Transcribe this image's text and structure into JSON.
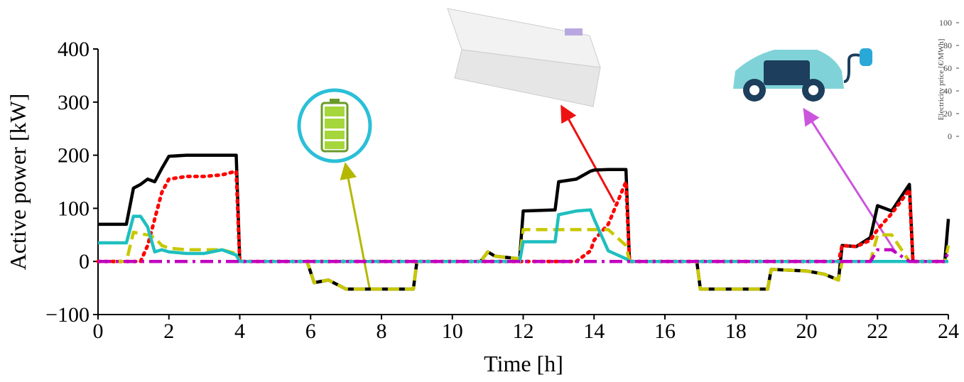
{
  "chart_data": {
    "type": "line",
    "x_label": "Time [h]",
    "y_label": "Active power [kW]",
    "x": [
      0,
      0.8,
      1,
      1.2,
      1.4,
      1.6,
      1.8,
      2,
      2.5,
      3,
      3.5,
      3.9,
      4,
      5.9,
      6.1,
      6.5,
      7,
      7.5,
      8,
      8.9,
      9,
      10.8,
      11,
      11.2,
      11.9,
      12,
      12.9,
      13,
      13.5,
      13.9,
      14,
      14.4,
      14.9,
      15,
      16.9,
      17,
      18,
      18.9,
      19,
      20,
      20.5,
      20.9,
      21,
      21.4,
      21.8,
      22,
      22.4,
      22.9,
      23,
      23.9,
      24
    ],
    "series": [
      {
        "color": "#000000",
        "dash": "solid",
        "values": [
          70,
          70,
          138,
          145,
          155,
          150,
          175,
          198,
          200,
          200,
          200,
          200,
          0,
          0,
          -40,
          -35,
          -52,
          -52,
          -52,
          -52,
          0,
          0,
          18,
          10,
          5,
          95,
          97,
          150,
          155,
          170,
          172,
          173,
          173,
          0,
          0,
          -52,
          -52,
          -52,
          -15,
          -18,
          -24,
          -35,
          30,
          28,
          45,
          105,
          95,
          145,
          0,
          0,
          80
        ]
      },
      {
        "color": "#ff0000",
        "dash": "dotted",
        "values": [
          0,
          0,
          0,
          0,
          30,
          80,
          130,
          155,
          160,
          160,
          163,
          170,
          0,
          0,
          0,
          0,
          0,
          0,
          0,
          0,
          0,
          0,
          0,
          0,
          0,
          0,
          0,
          0,
          0,
          20,
          40,
          70,
          150,
          0,
          0,
          0,
          0,
          0,
          0,
          0,
          0,
          0,
          30,
          28,
          40,
          60,
          90,
          135,
          0,
          0,
          0
        ]
      },
      {
        "color": "#c8c800",
        "dash": "dashed",
        "values": [
          0,
          0,
          55,
          52,
          50,
          45,
          30,
          25,
          22,
          22,
          22,
          15,
          0,
          0,
          -40,
          -35,
          -52,
          -52,
          -52,
          -52,
          0,
          0,
          18,
          10,
          5,
          60,
          60,
          60,
          60,
          60,
          60,
          60,
          30,
          0,
          0,
          -52,
          -52,
          -52,
          -15,
          -18,
          -24,
          -35,
          0,
          0,
          0,
          50,
          50,
          0,
          0,
          0,
          30
        ]
      },
      {
        "color": "#1fbfbf",
        "dash": "solid",
        "values": [
          35,
          35,
          85,
          85,
          65,
          18,
          22,
          18,
          15,
          15,
          22,
          12,
          0,
          0,
          0,
          0,
          0,
          0,
          0,
          0,
          0,
          0,
          0,
          0,
          0,
          37,
          37,
          88,
          95,
          97,
          80,
          20,
          5,
          0,
          0,
          0,
          0,
          0,
          0,
          0,
          0,
          0,
          0,
          0,
          0,
          0,
          0,
          0,
          0,
          0,
          0
        ]
      },
      {
        "color": "#c000c0",
        "dash": "dashdot",
        "values": [
          0,
          0,
          0,
          0,
          0,
          0,
          0,
          0,
          0,
          0,
          0,
          0,
          0,
          0,
          0,
          0,
          0,
          0,
          0,
          0,
          0,
          0,
          0,
          0,
          0,
          0,
          0,
          0,
          0,
          0,
          0,
          0,
          0,
          0,
          0,
          0,
          0,
          0,
          0,
          0,
          0,
          0,
          0,
          0,
          0,
          22,
          22,
          0,
          0,
          0,
          20
        ]
      }
    ],
    "xlim": [
      0,
      24
    ],
    "xticks": [
      0,
      2,
      4,
      6,
      8,
      10,
      12,
      14,
      16,
      18,
      20,
      22,
      24
    ],
    "ylim": [
      -100,
      400
    ],
    "yticks": [
      {
        "value": -100,
        "label": "−100"
      },
      0,
      100,
      200,
      300,
      400
    ],
    "y2_label": "Electricity price [€/MWh]",
    "y2lim": [
      0,
      100
    ],
    "y2ticks": [
      0,
      20,
      40,
      60,
      80,
      100
    ]
  }
}
